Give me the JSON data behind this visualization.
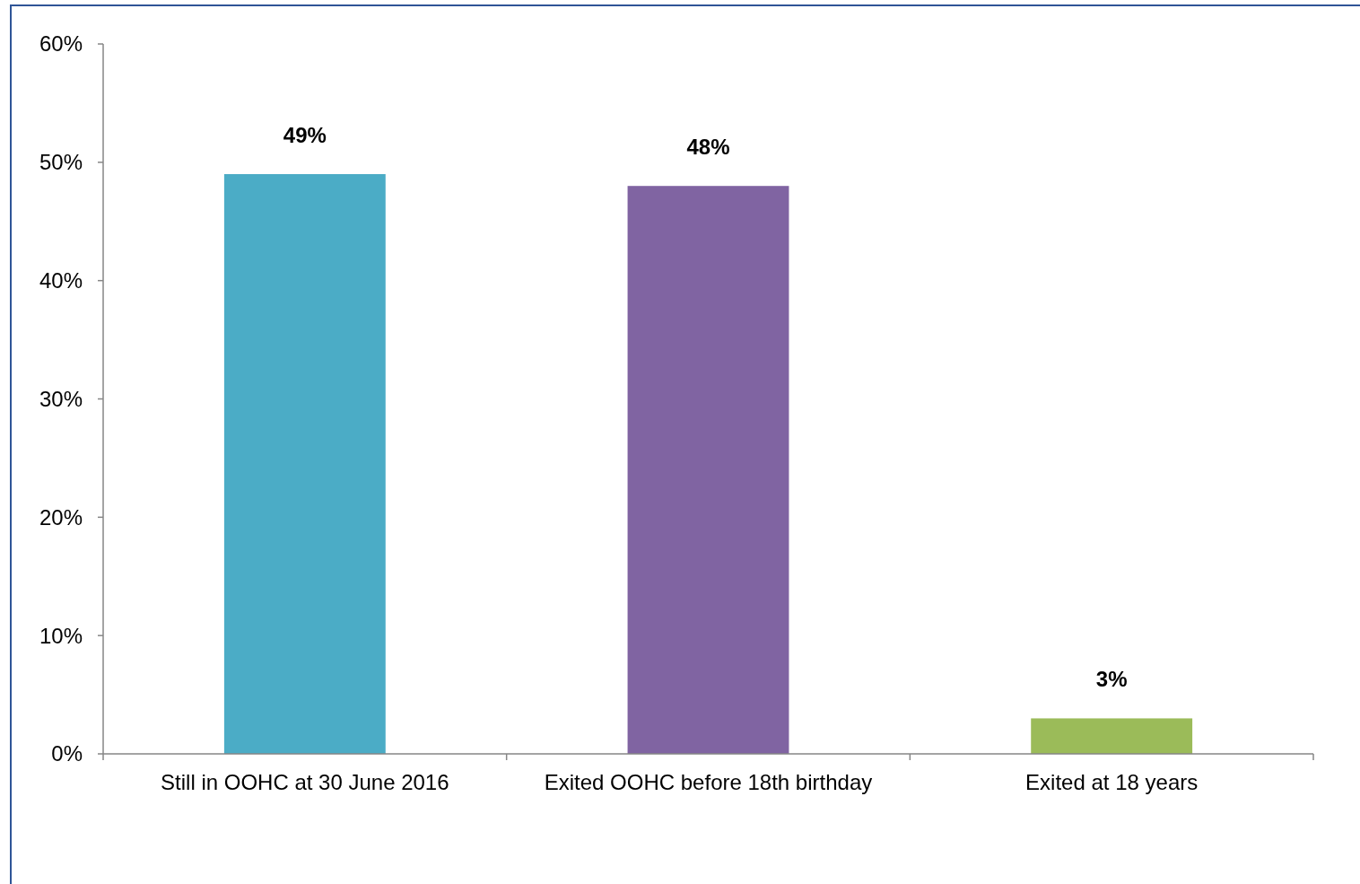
{
  "chart_data": {
    "type": "bar",
    "categories": [
      "Still in OOHC at 30 June 2016",
      "Exited OOHC before 18th birthday",
      "Exited at 18 years"
    ],
    "values": [
      49,
      48,
      3
    ],
    "colors": [
      "#4bacc6",
      "#8064a2",
      "#9bbb59"
    ],
    "value_labels": [
      "49%",
      "48%",
      "3%"
    ],
    "ylim": [
      0,
      60
    ],
    "yticks": [
      {
        "value": 0,
        "label": "0%"
      },
      {
        "value": 10,
        "label": "10%"
      },
      {
        "value": 20,
        "label": "20%"
      },
      {
        "value": 30,
        "label": "30%"
      },
      {
        "value": 40,
        "label": "40%"
      },
      {
        "value": 50,
        "label": "50%"
      },
      {
        "value": 60,
        "label": "60%"
      }
    ],
    "grid": false,
    "legend": false
  }
}
